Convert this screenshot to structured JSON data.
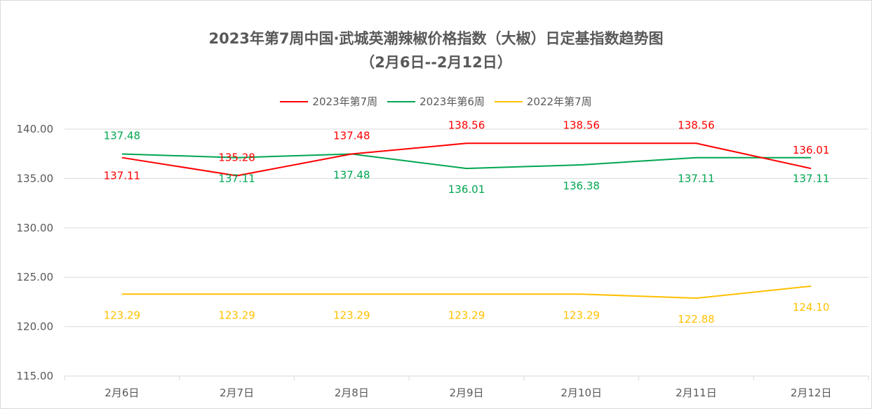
{
  "chart_data": {
    "type": "line",
    "title_line1": "2023年第7周中国·武城英潮辣椒价格指数（大椒）日定基指数趋势图",
    "title_line2": "（2月6日--2月12日）",
    "categories": [
      "2月6日",
      "2月7日",
      "2月8日",
      "2月9日",
      "2月10日",
      "2月11日",
      "2月12日"
    ],
    "y_ticks": [
      "115.00",
      "120.00",
      "125.00",
      "130.00",
      "135.00",
      "140.00"
    ],
    "ylim": [
      115,
      140
    ],
    "grid": true,
    "legend_position": "top",
    "series": [
      {
        "name": "2023年第7周",
        "color": "#ff0000",
        "values": [
          137.11,
          135.28,
          137.48,
          138.56,
          138.56,
          138.56,
          136.01
        ],
        "labels": [
          "137.11",
          "135.28",
          "137.48",
          "138.56",
          "138.56",
          "138.56",
          "136.01"
        ]
      },
      {
        "name": "2023年第6周",
        "color": "#00a651",
        "values": [
          137.48,
          137.11,
          137.48,
          136.01,
          136.38,
          137.11,
          137.11
        ],
        "labels": [
          "137.48",
          "137.11",
          "137.48",
          "136.01",
          "136.38",
          "137.11",
          "137.11"
        ]
      },
      {
        "name": "2022年第7周",
        "color": "#ffc000",
        "values": [
          123.29,
          123.29,
          123.29,
          123.29,
          123.29,
          122.88,
          124.1
        ],
        "labels": [
          "123.29",
          "123.29",
          "123.29",
          "123.29",
          "123.29",
          "122.88",
          "124.10"
        ]
      }
    ]
  }
}
